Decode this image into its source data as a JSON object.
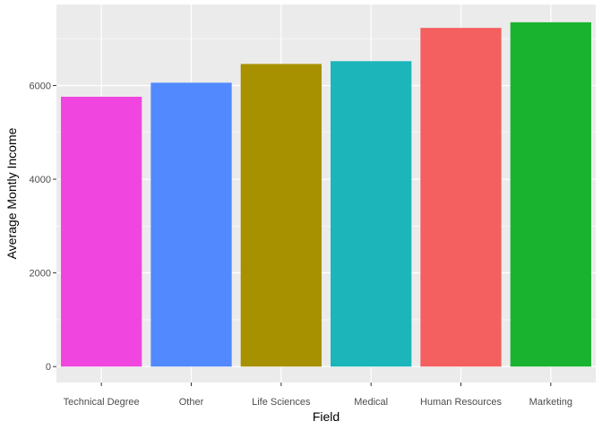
{
  "chart_data": {
    "type": "bar",
    "title": "",
    "xlabel": "Field",
    "ylabel": "Average Montly Income",
    "categories": [
      "Technical Degree",
      "Other",
      "Life Sciences",
      "Medical",
      "Human Resources",
      "Marketing"
    ],
    "values": [
      5760,
      6060,
      6460,
      6520,
      7230,
      7350
    ],
    "colors": [
      "#F046DF",
      "#5289FF",
      "#A89100",
      "#1BB5BA",
      "#F45F5F",
      "#1AB330"
    ],
    "ylim": [
      -340,
      7730
    ],
    "yticks": [
      0,
      2000,
      4000,
      6000
    ],
    "ytick_labels": [
      "0",
      "2000",
      "4000",
      "6000"
    ],
    "grid": true,
    "panel_background": "#EBEBEB",
    "grid_color": "#FFFFFF",
    "legend": "none"
  }
}
